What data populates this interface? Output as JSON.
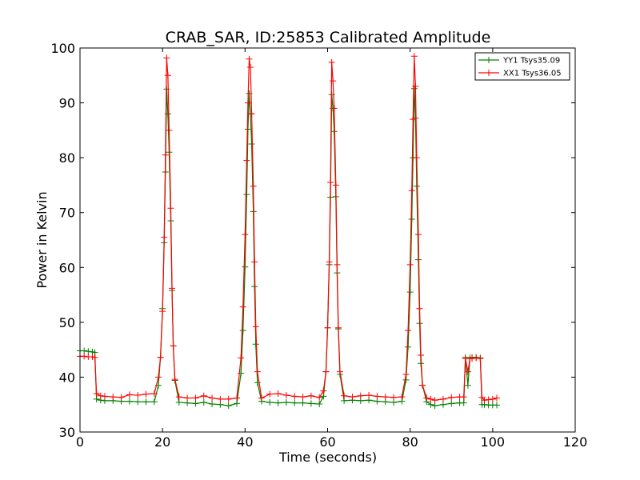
{
  "chart_data": {
    "type": "line",
    "title": "CRAB_SAR, ID:25853 Calibrated Amplitude",
    "xlabel": "Time (seconds)",
    "ylabel": "Power in Kelvin",
    "xlim": [
      0,
      120
    ],
    "ylim": [
      30,
      100
    ],
    "x_ticks": [
      0,
      20,
      40,
      60,
      80,
      100,
      120
    ],
    "y_ticks": [
      30,
      40,
      50,
      60,
      70,
      80,
      90,
      100
    ],
    "grid": false,
    "legend_position": "top-right",
    "series": [
      {
        "name": "YY1 Tsys35.09",
        "color": "#008000",
        "marker": "+",
        "points": [
          [
            0,
            44.8
          ],
          [
            1,
            44.8
          ],
          [
            2,
            44.7
          ],
          [
            3,
            44.6
          ],
          [
            3.6,
            44.5
          ],
          [
            4,
            36.0
          ],
          [
            5,
            35.8
          ],
          [
            6,
            35.7
          ],
          [
            8,
            35.7
          ],
          [
            10,
            35.6
          ],
          [
            12,
            35.6
          ],
          [
            14,
            35.5
          ],
          [
            16,
            35.5
          ],
          [
            18,
            35.5
          ],
          [
            19,
            38.5
          ],
          [
            19.5,
            43.6
          ],
          [
            20,
            52.5
          ],
          [
            20.4,
            64.5
          ],
          [
            20.7,
            77.4
          ],
          [
            21,
            92.5
          ],
          [
            21.3,
            88.0
          ],
          [
            21.6,
            81.0
          ],
          [
            22,
            68.5
          ],
          [
            22.3,
            55.8
          ],
          [
            22.6,
            45.7
          ],
          [
            23,
            39.4
          ],
          [
            24,
            35.4
          ],
          [
            26,
            35.3
          ],
          [
            28,
            35.2
          ],
          [
            30,
            35.4
          ],
          [
            32,
            35.1
          ],
          [
            34,
            35.0
          ],
          [
            36,
            34.8
          ],
          [
            38,
            35.2
          ],
          [
            39,
            40.7
          ],
          [
            39.5,
            48.5
          ],
          [
            40,
            60.1
          ],
          [
            40.4,
            73.3
          ],
          [
            40.7,
            85.2
          ],
          [
            41,
            91.7
          ],
          [
            41.3,
            88.0
          ],
          [
            41.6,
            82.5
          ],
          [
            42,
            70.2
          ],
          [
            42.3,
            56.5
          ],
          [
            42.6,
            46.0
          ],
          [
            43,
            39.0
          ],
          [
            44,
            35.6
          ],
          [
            46,
            35.4
          ],
          [
            48,
            35.3
          ],
          [
            50,
            35.4
          ],
          [
            52,
            35.3
          ],
          [
            54,
            35.3
          ],
          [
            56,
            35.2
          ],
          [
            58,
            35.1
          ],
          [
            59,
            36.5
          ],
          [
            59.6,
            41.0
          ],
          [
            60,
            49.0
          ],
          [
            60.4,
            60.5
          ],
          [
            60.7,
            72.8
          ],
          [
            61,
            91.5
          ],
          [
            61.3,
            89.0
          ],
          [
            61.6,
            84.8
          ],
          [
            62,
            72.9
          ],
          [
            62.3,
            59.0
          ],
          [
            62.6,
            48.8
          ],
          [
            63,
            40.5
          ],
          [
            64,
            35.7
          ],
          [
            66,
            35.8
          ],
          [
            68,
            35.7
          ],
          [
            70,
            35.8
          ],
          [
            72,
            35.6
          ],
          [
            74,
            35.5
          ],
          [
            76,
            35.4
          ],
          [
            78,
            35.6
          ],
          [
            79,
            39.5
          ],
          [
            79.5,
            45.5
          ],
          [
            80,
            55.5
          ],
          [
            80.4,
            68.8
          ],
          [
            80.7,
            80.0
          ],
          [
            81,
            92.6
          ],
          [
            81.3,
            87.2
          ],
          [
            81.6,
            74.8
          ],
          [
            82,
            61.4
          ],
          [
            82.3,
            49.8
          ],
          [
            82.6,
            42.5
          ],
          [
            83,
            38.5
          ],
          [
            84,
            35.5
          ],
          [
            85,
            35.0
          ],
          [
            86,
            34.8
          ],
          [
            88,
            35.0
          ],
          [
            90,
            35.2
          ],
          [
            92,
            35.3
          ],
          [
            93,
            35.3
          ],
          [
            93.4,
            43.6
          ],
          [
            94,
            38.5
          ],
          [
            94.5,
            43.5
          ],
          [
            95,
            43.6
          ],
          [
            96,
            43.6
          ],
          [
            97,
            43.5
          ],
          [
            97.4,
            35.0
          ],
          [
            98,
            35.0
          ],
          [
            99,
            34.9
          ],
          [
            100,
            34.9
          ],
          [
            101,
            34.9
          ]
        ]
      },
      {
        "name": "XX1 Tsys36.05",
        "color": "#ff0000",
        "marker": "+",
        "points": [
          [
            0,
            43.8
          ],
          [
            1,
            43.8
          ],
          [
            2,
            43.7
          ],
          [
            3,
            43.7
          ],
          [
            3.6,
            43.6
          ],
          [
            4,
            37.0
          ],
          [
            5,
            36.6
          ],
          [
            6,
            36.5
          ],
          [
            8,
            36.4
          ],
          [
            10,
            36.3
          ],
          [
            12,
            36.8
          ],
          [
            14,
            36.7
          ],
          [
            16,
            36.9
          ],
          [
            18,
            37.0
          ],
          [
            19,
            40.0
          ],
          [
            19.5,
            43.6
          ],
          [
            20,
            52.0
          ],
          [
            20.4,
            65.5
          ],
          [
            20.7,
            80.5
          ],
          [
            21,
            98.2
          ],
          [
            21.3,
            95.0
          ],
          [
            21.6,
            85.0
          ],
          [
            22,
            70.8
          ],
          [
            22.3,
            56.2
          ],
          [
            22.6,
            45.7
          ],
          [
            23,
            39.6
          ],
          [
            24,
            36.4
          ],
          [
            26,
            36.2
          ],
          [
            28,
            36.2
          ],
          [
            30,
            36.6
          ],
          [
            32,
            36.2
          ],
          [
            34,
            36.0
          ],
          [
            36,
            36.0
          ],
          [
            38,
            36.2
          ],
          [
            39,
            43.5
          ],
          [
            39.5,
            52.8
          ],
          [
            40,
            66.0
          ],
          [
            40.4,
            79.5
          ],
          [
            40.7,
            90.0
          ],
          [
            41,
            98.0
          ],
          [
            41.3,
            96.5
          ],
          [
            41.6,
            88.0
          ],
          [
            42,
            74.8
          ],
          [
            42.3,
            61.0
          ],
          [
            42.6,
            49.2
          ],
          [
            43,
            41.0
          ],
          [
            44,
            36.2
          ],
          [
            46,
            36.9
          ],
          [
            48,
            37.0
          ],
          [
            50,
            36.7
          ],
          [
            52,
            36.5
          ],
          [
            54,
            36.4
          ],
          [
            56,
            36.6
          ],
          [
            58,
            36.3
          ],
          [
            59,
            37.5
          ],
          [
            59.6,
            41.0
          ],
          [
            60,
            49.0
          ],
          [
            60.4,
            61.0
          ],
          [
            60.7,
            75.5
          ],
          [
            61,
            97.4
          ],
          [
            61.3,
            94.0
          ],
          [
            61.6,
            89.0
          ],
          [
            62,
            75.0
          ],
          [
            62.3,
            60.5
          ],
          [
            62.6,
            49.0
          ],
          [
            63,
            41.0
          ],
          [
            64,
            36.6
          ],
          [
            66,
            36.4
          ],
          [
            68,
            36.6
          ],
          [
            70,
            36.7
          ],
          [
            72,
            36.5
          ],
          [
            74,
            36.4
          ],
          [
            76,
            36.3
          ],
          [
            78,
            36.4
          ],
          [
            79,
            40.5
          ],
          [
            79.5,
            48.5
          ],
          [
            80,
            60.5
          ],
          [
            80.4,
            74.0
          ],
          [
            80.7,
            87.0
          ],
          [
            81,
            98.5
          ],
          [
            81.3,
            93.0
          ],
          [
            81.6,
            80.0
          ],
          [
            82,
            66.0
          ],
          [
            82.3,
            52.5
          ],
          [
            82.6,
            44.0
          ],
          [
            83,
            38.5
          ],
          [
            84,
            36.2
          ],
          [
            85,
            36.0
          ],
          [
            86,
            35.8
          ],
          [
            88,
            36.0
          ],
          [
            90,
            36.3
          ],
          [
            92,
            36.4
          ],
          [
            93,
            36.4
          ],
          [
            93.4,
            43.4
          ],
          [
            94,
            41.0
          ],
          [
            94.5,
            43.4
          ],
          [
            95,
            43.4
          ],
          [
            96,
            43.5
          ],
          [
            97,
            43.4
          ],
          [
            97.4,
            36.3
          ],
          [
            98,
            35.8
          ],
          [
            99,
            35.9
          ],
          [
            100,
            36.0
          ],
          [
            101,
            36.2
          ]
        ]
      }
    ]
  }
}
